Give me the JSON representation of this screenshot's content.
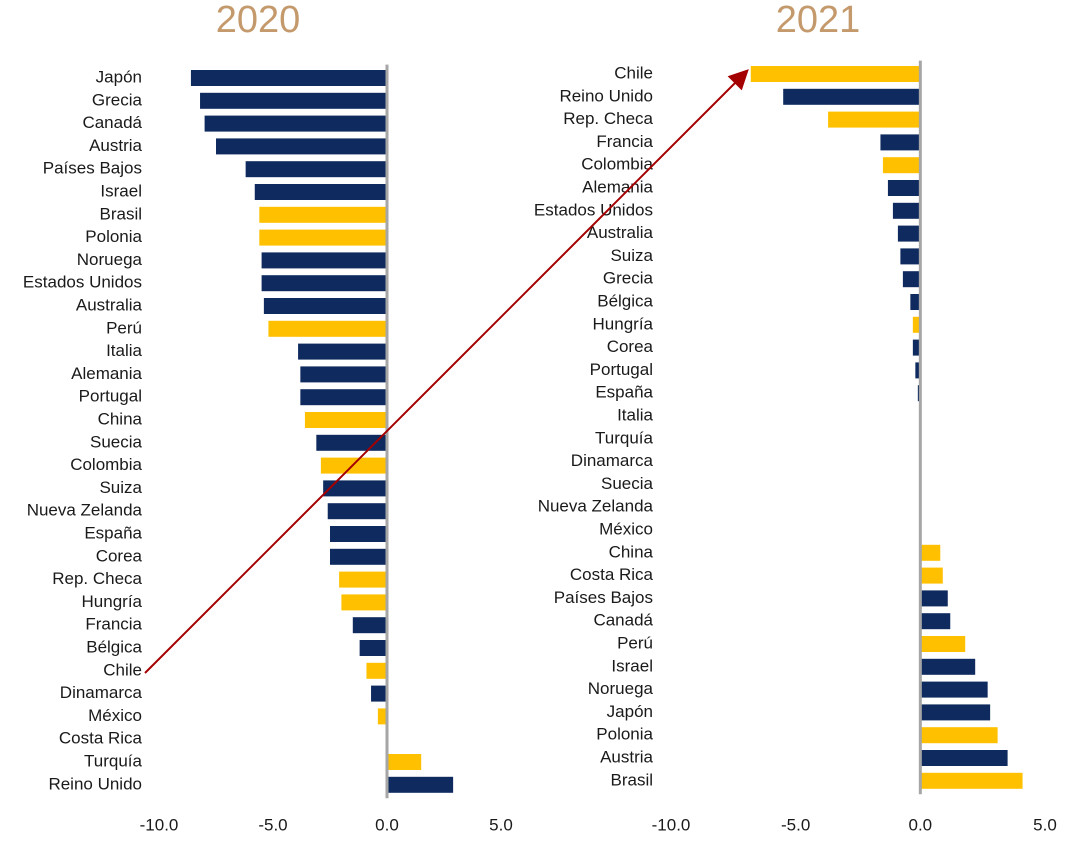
{
  "chart_data": [
    {
      "type": "bar",
      "orientation": "horizontal",
      "title": "2020",
      "categories": [
        "Japón",
        "Grecia",
        "Canadá",
        "Austria",
        "Países Bajos",
        "Israel",
        "Brasil",
        "Polonia",
        "Noruega",
        "Estados Unidos",
        "Australia",
        "Perú",
        "Italia",
        "Alemania",
        "Portugal",
        "China",
        "Suecia",
        "Colombia",
        "Suiza",
        "Nueva Zelanda",
        "España",
        "Corea",
        "Rep. Checa",
        "Hungría",
        "Francia",
        "Bélgica",
        "Chile",
        "Dinamarca",
        "México",
        "Costa Rica",
        "Turquía",
        "Reino Unido"
      ],
      "values": [
        -8.6,
        -8.2,
        -8.0,
        -7.5,
        -6.2,
        -5.8,
        -5.6,
        -5.6,
        -5.5,
        -5.5,
        -5.4,
        -5.2,
        -3.9,
        -3.8,
        -3.8,
        -3.6,
        -3.1,
        -2.9,
        -2.8,
        -2.6,
        -2.5,
        -2.5,
        -2.1,
        -2.0,
        -1.5,
        -1.2,
        -0.9,
        -0.7,
        -0.4,
        0,
        1.5,
        2.9
      ],
      "colors": [
        "#0f2a5e",
        "#0f2a5e",
        "#0f2a5e",
        "#0f2a5e",
        "#0f2a5e",
        "#0f2a5e",
        "#ffc000",
        "#ffc000",
        "#0f2a5e",
        "#0f2a5e",
        "#0f2a5e",
        "#ffc000",
        "#0f2a5e",
        "#0f2a5e",
        "#0f2a5e",
        "#ffc000",
        "#0f2a5e",
        "#ffc000",
        "#0f2a5e",
        "#0f2a5e",
        "#0f2a5e",
        "#0f2a5e",
        "#ffc000",
        "#ffc000",
        "#0f2a5e",
        "#0f2a5e",
        "#ffc000",
        "#0f2a5e",
        "#ffc000",
        "#ffc000",
        "#ffc000",
        "#0f2a5e"
      ],
      "xlim": [
        -10,
        5
      ],
      "xticks": [
        {
          "value": -10,
          "label": "-10.0"
        },
        {
          "value": -5,
          "label": "-5.0"
        },
        {
          "value": 0,
          "label": "0.0"
        },
        {
          "value": 5,
          "label": "5.0"
        }
      ]
    },
    {
      "type": "bar",
      "orientation": "horizontal",
      "title": "2021",
      "categories": [
        "Chile",
        "Reino Unido",
        "Rep. Checa",
        "Francia",
        "Colombia",
        "Alemania",
        "Estados Unidos",
        "Australia",
        "Suiza",
        "Grecia",
        "Bélgica",
        "Hungría",
        "Corea",
        "Portugal",
        "España",
        "Italia",
        "Turquía",
        "Dinamarca",
        "Suecia",
        "Nueva Zelanda",
        "México",
        "China",
        "Costa Rica",
        "Países Bajos",
        "Canadá",
        "Perú",
        "Israel",
        "Noruega",
        "Japón",
        "Polonia",
        "Austria",
        "Brasil"
      ],
      "values": [
        -6.8,
        -5.5,
        -3.7,
        -1.6,
        -1.5,
        -1.3,
        -1.1,
        -0.9,
        -0.8,
        -0.7,
        -0.4,
        -0.3,
        -0.3,
        -0.2,
        -0.1,
        0,
        0,
        0,
        0,
        0,
        0,
        0.8,
        0.9,
        1.1,
        1.2,
        1.8,
        2.2,
        2.7,
        2.8,
        3.1,
        3.5,
        4.1
      ],
      "colors": [
        "#ffc000",
        "#0f2a5e",
        "#ffc000",
        "#0f2a5e",
        "#ffc000",
        "#0f2a5e",
        "#0f2a5e",
        "#0f2a5e",
        "#0f2a5e",
        "#0f2a5e",
        "#0f2a5e",
        "#ffc000",
        "#0f2a5e",
        "#0f2a5e",
        "#0f2a5e",
        "#0f2a5e",
        "#ffc000",
        "#0f2a5e",
        "#0f2a5e",
        "#0f2a5e",
        "#ffc000",
        "#ffc000",
        "#ffc000",
        "#0f2a5e",
        "#0f2a5e",
        "#ffc000",
        "#0f2a5e",
        "#0f2a5e",
        "#0f2a5e",
        "#ffc000",
        "#0f2a5e",
        "#ffc000"
      ],
      "xlim": [
        -10,
        5
      ],
      "xticks": [
        {
          "value": -10,
          "label": "-10.0"
        },
        {
          "value": -5,
          "label": "-5.0"
        },
        {
          "value": 0,
          "label": "0.0"
        },
        {
          "value": 5,
          "label": "5.0"
        }
      ]
    }
  ]
}
